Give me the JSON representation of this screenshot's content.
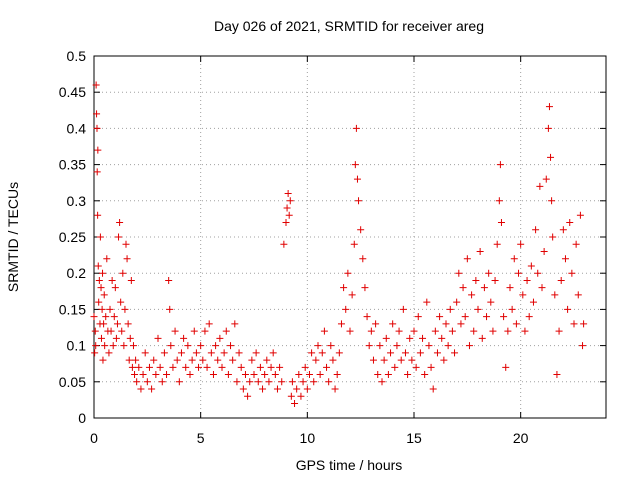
{
  "chart_data": {
    "type": "scatter",
    "title": "Day 026 of 2021, SRMTID for receiver areg",
    "xlabel": "GPS time / hours",
    "ylabel": "SRMTID / TECUs",
    "xlim": [
      0,
      24
    ],
    "ylim": [
      0,
      0.5
    ],
    "xticks": [
      0,
      5,
      10,
      15,
      20
    ],
    "xtick_labels": [
      "0",
      "5",
      "10",
      "15",
      "20"
    ],
    "yticks": [
      0,
      0.05,
      0.1,
      0.15,
      0.2,
      0.25,
      0.3,
      0.35,
      0.4,
      0.45,
      0.5
    ],
    "ytick_labels": [
      "0",
      "0.05",
      "0.1",
      "0.15",
      "0.2",
      "0.25",
      "0.3",
      "0.35",
      "0.4",
      "0.45",
      "0.5"
    ],
    "grid": true,
    "marker": "+",
    "color": "#e00000",
    "series": [
      {
        "name": "SRMTID",
        "points": [
          [
            0.0,
            0.14
          ],
          [
            0.03,
            0.09
          ],
          [
            0.06,
            0.12
          ],
          [
            0.08,
            0.1
          ],
          [
            0.1,
            0.46
          ],
          [
            0.12,
            0.42
          ],
          [
            0.14,
            0.4
          ],
          [
            0.15,
            0.34
          ],
          [
            0.17,
            0.28
          ],
          [
            0.18,
            0.37
          ],
          [
            0.2,
            0.21
          ],
          [
            0.22,
            0.16
          ],
          [
            0.25,
            0.19
          ],
          [
            0.28,
            0.13
          ],
          [
            0.3,
            0.25
          ],
          [
            0.33,
            0.18
          ],
          [
            0.35,
            0.11
          ],
          [
            0.38,
            0.15
          ],
          [
            0.4,
            0.2
          ],
          [
            0.42,
            0.08
          ],
          [
            0.45,
            0.13
          ],
          [
            0.48,
            0.17
          ],
          [
            0.5,
            0.1
          ],
          [
            0.55,
            0.14
          ],
          [
            0.6,
            0.22
          ],
          [
            0.65,
            0.12
          ],
          [
            0.7,
            0.09
          ],
          [
            0.75,
            0.15
          ],
          [
            0.8,
            0.12
          ],
          [
            0.85,
            0.19
          ],
          [
            0.9,
            0.1
          ],
          [
            0.95,
            0.14
          ],
          [
            1.0,
            0.18
          ],
          [
            1.05,
            0.11
          ],
          [
            1.1,
            0.13
          ],
          [
            1.15,
            0.25
          ],
          [
            1.2,
            0.27
          ],
          [
            1.25,
            0.16
          ],
          [
            1.3,
            0.12
          ],
          [
            1.35,
            0.2
          ],
          [
            1.4,
            0.1
          ],
          [
            1.45,
            0.15
          ],
          [
            1.5,
            0.24
          ],
          [
            1.55,
            0.22
          ],
          [
            1.6,
            0.13
          ],
          [
            1.65,
            0.08
          ],
          [
            1.7,
            0.11
          ],
          [
            1.75,
            0.19
          ],
          [
            1.8,
            0.07
          ],
          [
            1.85,
            0.1
          ],
          [
            1.9,
            0.06
          ],
          [
            1.95,
            0.08
          ],
          [
            2.0,
            0.05
          ],
          [
            2.1,
            0.07
          ],
          [
            2.2,
            0.04
          ],
          [
            2.3,
            0.06
          ],
          [
            2.4,
            0.09
          ],
          [
            2.5,
            0.05
          ],
          [
            2.6,
            0.07
          ],
          [
            2.7,
            0.04
          ],
          [
            2.8,
            0.08
          ],
          [
            2.9,
            0.06
          ],
          [
            3.0,
            0.11
          ],
          [
            3.1,
            0.07
          ],
          [
            3.2,
            0.05
          ],
          [
            3.3,
            0.09
          ],
          [
            3.4,
            0.06
          ],
          [
            3.5,
            0.19
          ],
          [
            3.55,
            0.15
          ],
          [
            3.6,
            0.1
          ],
          [
            3.7,
            0.07
          ],
          [
            3.8,
            0.12
          ],
          [
            3.9,
            0.08
          ],
          [
            4.0,
            0.05
          ],
          [
            4.1,
            0.09
          ],
          [
            4.2,
            0.11
          ],
          [
            4.3,
            0.07
          ],
          [
            4.4,
            0.1
          ],
          [
            4.5,
            0.06
          ],
          [
            4.6,
            0.08
          ],
          [
            4.7,
            0.12
          ],
          [
            4.8,
            0.09
          ],
          [
            4.9,
            0.07
          ],
          [
            5.0,
            0.1
          ],
          [
            5.1,
            0.08
          ],
          [
            5.2,
            0.12
          ],
          [
            5.3,
            0.07
          ],
          [
            5.4,
            0.13
          ],
          [
            5.5,
            0.09
          ],
          [
            5.6,
            0.06
          ],
          [
            5.7,
            0.1
          ],
          [
            5.8,
            0.08
          ],
          [
            5.9,
            0.11
          ],
          [
            6.0,
            0.07
          ],
          [
            6.1,
            0.09
          ],
          [
            6.2,
            0.12
          ],
          [
            6.3,
            0.06
          ],
          [
            6.4,
            0.1
          ],
          [
            6.5,
            0.08
          ],
          [
            6.6,
            0.13
          ],
          [
            6.7,
            0.05
          ],
          [
            6.8,
            0.09
          ],
          [
            6.9,
            0.07
          ],
          [
            7.0,
            0.04
          ],
          [
            7.1,
            0.06
          ],
          [
            7.2,
            0.03
          ],
          [
            7.3,
            0.05
          ],
          [
            7.4,
            0.08
          ],
          [
            7.5,
            0.06
          ],
          [
            7.6,
            0.09
          ],
          [
            7.7,
            0.05
          ],
          [
            7.8,
            0.07
          ],
          [
            7.9,
            0.04
          ],
          [
            8.0,
            0.06
          ],
          [
            8.1,
            0.08
          ],
          [
            8.2,
            0.05
          ],
          [
            8.3,
            0.07
          ],
          [
            8.4,
            0.09
          ],
          [
            8.5,
            0.06
          ],
          [
            8.6,
            0.04
          ],
          [
            8.7,
            0.07
          ],
          [
            8.8,
            0.05
          ],
          [
            8.9,
            0.24
          ],
          [
            9.0,
            0.27
          ],
          [
            9.05,
            0.29
          ],
          [
            9.1,
            0.31
          ],
          [
            9.15,
            0.28
          ],
          [
            9.2,
            0.3
          ],
          [
            9.25,
            0.03
          ],
          [
            9.3,
            0.05
          ],
          [
            9.4,
            0.02
          ],
          [
            9.5,
            0.04
          ],
          [
            9.6,
            0.06
          ],
          [
            9.7,
            0.03
          ],
          [
            9.8,
            0.05
          ],
          [
            9.9,
            0.07
          ],
          [
            10.0,
            0.04
          ],
          [
            10.1,
            0.06
          ],
          [
            10.2,
            0.09
          ],
          [
            10.3,
            0.05
          ],
          [
            10.4,
            0.08
          ],
          [
            10.5,
            0.1
          ],
          [
            10.6,
            0.06
          ],
          [
            10.7,
            0.09
          ],
          [
            10.8,
            0.12
          ],
          [
            10.9,
            0.07
          ],
          [
            11.0,
            0.05
          ],
          [
            11.1,
            0.1
          ],
          [
            11.2,
            0.08
          ],
          [
            11.3,
            0.04
          ],
          [
            11.4,
            0.06
          ],
          [
            11.5,
            0.09
          ],
          [
            11.6,
            0.13
          ],
          [
            11.7,
            0.18
          ],
          [
            11.8,
            0.15
          ],
          [
            11.9,
            0.2
          ],
          [
            12.0,
            0.12
          ],
          [
            12.1,
            0.17
          ],
          [
            12.2,
            0.24
          ],
          [
            12.25,
            0.35
          ],
          [
            12.3,
            0.4
          ],
          [
            12.35,
            0.33
          ],
          [
            12.4,
            0.3
          ],
          [
            12.5,
            0.26
          ],
          [
            12.6,
            0.22
          ],
          [
            12.7,
            0.18
          ],
          [
            12.8,
            0.14
          ],
          [
            12.9,
            0.1
          ],
          [
            13.0,
            0.12
          ],
          [
            13.1,
            0.08
          ],
          [
            13.2,
            0.13
          ],
          [
            13.3,
            0.06
          ],
          [
            13.4,
            0.1
          ],
          [
            13.5,
            0.05
          ],
          [
            13.6,
            0.08
          ],
          [
            13.7,
            0.11
          ],
          [
            13.8,
            0.06
          ],
          [
            13.9,
            0.09
          ],
          [
            14.0,
            0.13
          ],
          [
            14.1,
            0.07
          ],
          [
            14.2,
            0.1
          ],
          [
            14.3,
            0.12
          ],
          [
            14.4,
            0.08
          ],
          [
            14.5,
            0.15
          ],
          [
            14.6,
            0.09
          ],
          [
            14.7,
            0.06
          ],
          [
            14.8,
            0.11
          ],
          [
            14.9,
            0.08
          ],
          [
            15.0,
            0.12
          ],
          [
            15.1,
            0.07
          ],
          [
            15.2,
            0.14
          ],
          [
            15.3,
            0.09
          ],
          [
            15.4,
            0.11
          ],
          [
            15.5,
            0.06
          ],
          [
            15.6,
            0.16
          ],
          [
            15.7,
            0.1
          ],
          [
            15.8,
            0.07
          ],
          [
            15.9,
            0.04
          ],
          [
            16.0,
            0.12
          ],
          [
            16.1,
            0.09
          ],
          [
            16.2,
            0.14
          ],
          [
            16.3,
            0.11
          ],
          [
            16.4,
            0.08
          ],
          [
            16.5,
            0.13
          ],
          [
            16.6,
            0.1
          ],
          [
            16.7,
            0.15
          ],
          [
            16.8,
            0.12
          ],
          [
            16.9,
            0.09
          ],
          [
            17.0,
            0.16
          ],
          [
            17.1,
            0.2
          ],
          [
            17.2,
            0.13
          ],
          [
            17.3,
            0.18
          ],
          [
            17.4,
            0.14
          ],
          [
            17.5,
            0.22
          ],
          [
            17.6,
            0.1
          ],
          [
            17.7,
            0.17
          ],
          [
            17.8,
            0.12
          ],
          [
            17.9,
            0.19
          ],
          [
            18.0,
            0.15
          ],
          [
            18.1,
            0.23
          ],
          [
            18.2,
            0.11
          ],
          [
            18.3,
            0.18
          ],
          [
            18.4,
            0.14
          ],
          [
            18.5,
            0.2
          ],
          [
            18.6,
            0.16
          ],
          [
            18.7,
            0.12
          ],
          [
            18.8,
            0.19
          ],
          [
            18.9,
            0.24
          ],
          [
            19.0,
            0.3
          ],
          [
            19.05,
            0.35
          ],
          [
            19.1,
            0.27
          ],
          [
            19.2,
            0.14
          ],
          [
            19.3,
            0.07
          ],
          [
            19.4,
            0.12
          ],
          [
            19.5,
            0.18
          ],
          [
            19.6,
            0.15
          ],
          [
            19.7,
            0.22
          ],
          [
            19.8,
            0.13
          ],
          [
            19.9,
            0.2
          ],
          [
            20.0,
            0.24
          ],
          [
            20.1,
            0.17
          ],
          [
            20.2,
            0.12
          ],
          [
            20.3,
            0.19
          ],
          [
            20.4,
            0.14
          ],
          [
            20.5,
            0.21
          ],
          [
            20.6,
            0.16
          ],
          [
            20.7,
            0.26
          ],
          [
            20.8,
            0.2
          ],
          [
            20.9,
            0.32
          ],
          [
            21.0,
            0.18
          ],
          [
            21.1,
            0.23
          ],
          [
            21.2,
            0.33
          ],
          [
            21.3,
            0.4
          ],
          [
            21.35,
            0.43
          ],
          [
            21.4,
            0.36
          ],
          [
            21.45,
            0.3
          ],
          [
            21.5,
            0.25
          ],
          [
            21.6,
            0.17
          ],
          [
            21.7,
            0.06
          ],
          [
            21.8,
            0.12
          ],
          [
            21.9,
            0.19
          ],
          [
            22.0,
            0.26
          ],
          [
            22.1,
            0.22
          ],
          [
            22.2,
            0.15
          ],
          [
            22.3,
            0.27
          ],
          [
            22.4,
            0.2
          ],
          [
            22.5,
            0.13
          ],
          [
            22.6,
            0.24
          ],
          [
            22.7,
            0.17
          ],
          [
            22.8,
            0.28
          ],
          [
            22.9,
            0.1
          ],
          [
            22.95,
            0.13
          ]
        ]
      }
    ]
  }
}
